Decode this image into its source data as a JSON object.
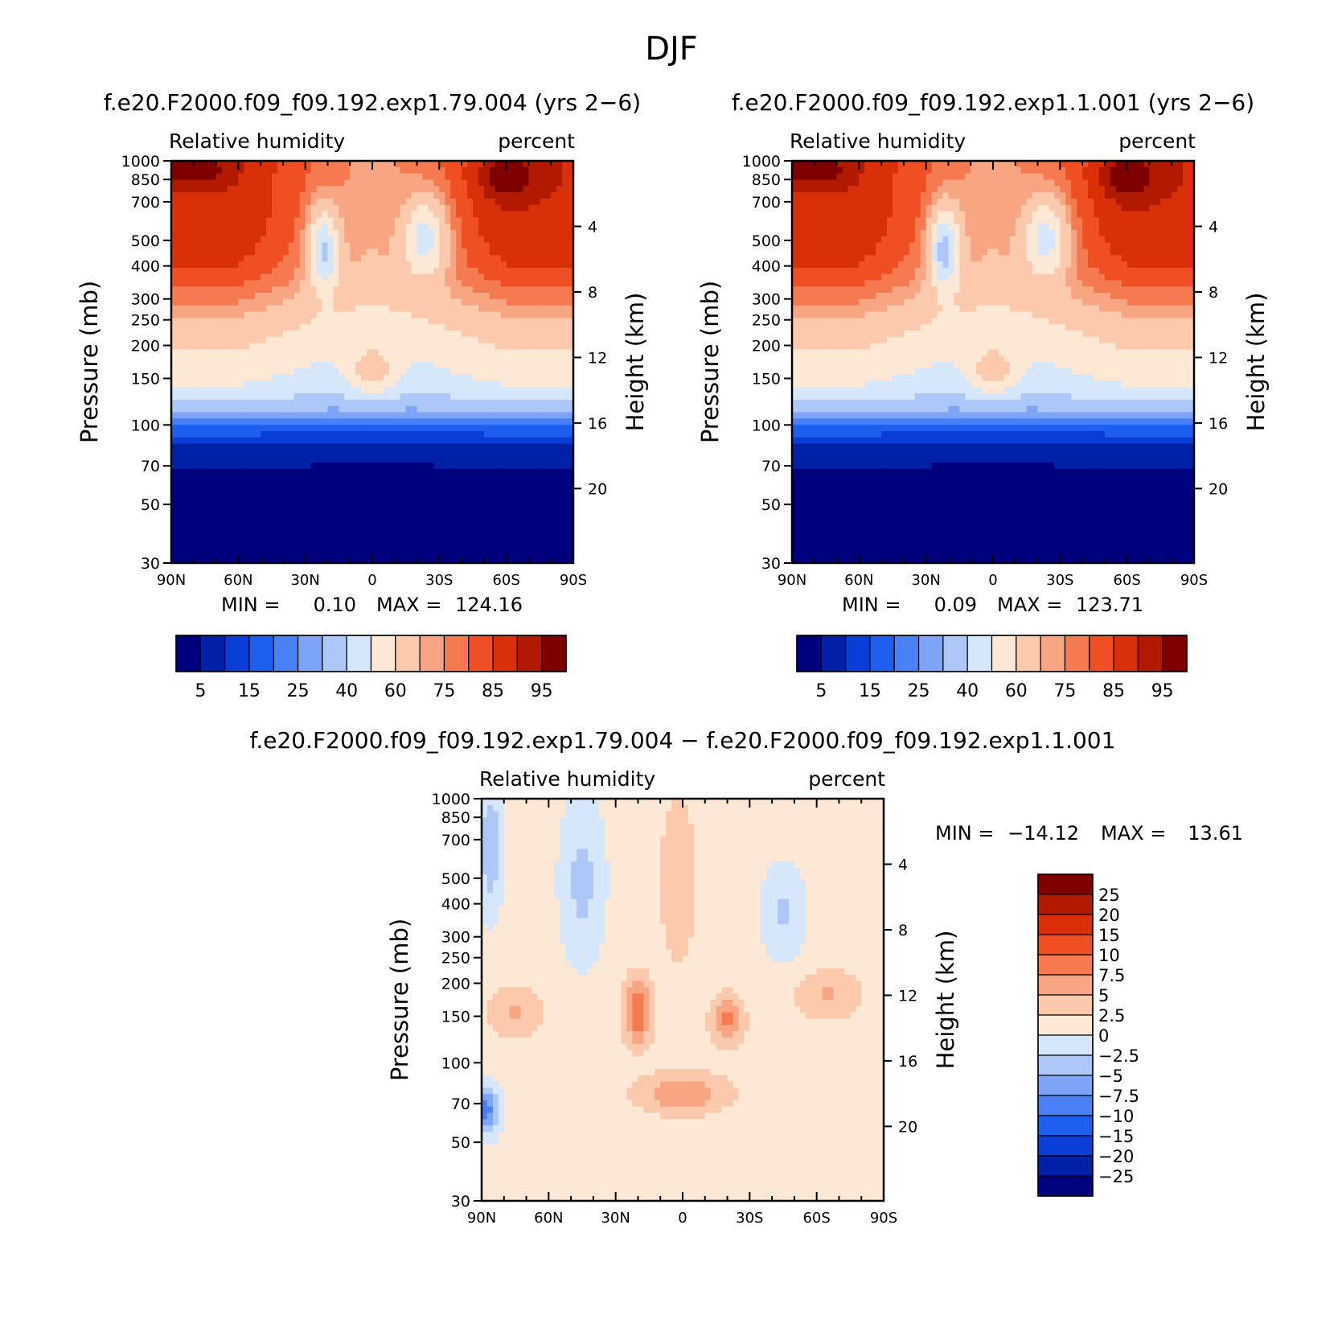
{
  "chart_data": {
    "type": "heatmap",
    "title": "DJF",
    "panels": [
      {
        "id": "p1",
        "title": "f.e20.F2000.f09_f09.192.exp1.79.004 (yrs 2−6)",
        "variable": "Relative humidity",
        "units": "percent",
        "ylabel": "Pressure (mb)",
        "ylabel_right": "Height (km)",
        "xlabel": "",
        "x_ticks": [
          "90N",
          "60N",
          "30N",
          "0",
          "30S",
          "60S",
          "90S"
        ],
        "y_ticks": [
          "30",
          "50",
          "70",
          "100",
          "150",
          "200",
          "250",
          "300",
          "400",
          "500",
          "700",
          "850",
          "1000"
        ],
        "height_ticks": [
          "20",
          "16",
          "12",
          "8",
          "4"
        ],
        "min_label": "MIN =",
        "min_value": "0.10",
        "max_label": "MAX =",
        "max_value": "124.16",
        "levels": [
          5,
          10,
          15,
          20,
          25,
          30,
          40,
          50,
          60,
          70,
          75,
          80,
          85,
          90,
          95
        ],
        "colorbar_labels": [
          "5",
          "15",
          "25",
          "40",
          "60",
          "75",
          "85",
          "95"
        ],
        "ylim": [
          1000,
          30
        ],
        "xlim": [
          90,
          -90
        ]
      },
      {
        "id": "p2",
        "title": "f.e20.F2000.f09_f09.192.exp1.1.001 (yrs 2−6)",
        "variable": "Relative humidity",
        "units": "percent",
        "ylabel": "Pressure (mb)",
        "ylabel_right": "Height (km)",
        "xlabel": "",
        "x_ticks": [
          "90N",
          "60N",
          "30N",
          "0",
          "30S",
          "60S",
          "90S"
        ],
        "y_ticks": [
          "30",
          "50",
          "70",
          "100",
          "150",
          "200",
          "250",
          "300",
          "400",
          "500",
          "700",
          "850",
          "1000"
        ],
        "height_ticks": [
          "20",
          "16",
          "12",
          "8",
          "4"
        ],
        "min_label": "MIN =",
        "min_value": "0.09",
        "max_label": "MAX =",
        "max_value": "123.71",
        "levels": [
          5,
          10,
          15,
          20,
          25,
          30,
          40,
          50,
          60,
          70,
          75,
          80,
          85,
          90,
          95
        ],
        "colorbar_labels": [
          "5",
          "15",
          "25",
          "40",
          "60",
          "75",
          "85",
          "95"
        ],
        "ylim": [
          1000,
          30
        ],
        "xlim": [
          90,
          -90
        ]
      },
      {
        "id": "p3",
        "title": "f.e20.F2000.f09_f09.192.exp1.79.004 − f.e20.F2000.f09_f09.192.exp1.1.001",
        "variable": "Relative humidity",
        "units": "percent",
        "ylabel": "Pressure (mb)",
        "ylabel_right": "Height (km)",
        "xlabel": "",
        "x_ticks": [
          "90N",
          "60N",
          "30N",
          "0",
          "30S",
          "60S",
          "90S"
        ],
        "y_ticks": [
          "30",
          "50",
          "70",
          "100",
          "150",
          "200",
          "250",
          "300",
          "400",
          "500",
          "700",
          "850",
          "1000"
        ],
        "height_ticks": [
          "20",
          "16",
          "12",
          "8",
          "4"
        ],
        "min_label": "MIN =",
        "min_value": "−14.12",
        "max_label": "MAX =",
        "max_value": "13.61",
        "levels": [
          -25,
          -20,
          -15,
          -10,
          -7.5,
          -5,
          -2.5,
          0,
          2.5,
          5,
          7.5,
          10,
          15,
          20,
          25
        ],
        "colorbar_labels": [
          "25",
          "20",
          "15",
          "10",
          "7.5",
          "5",
          "2.5",
          "0",
          "−2.5",
          "−5",
          "−7.5",
          "−10",
          "−15",
          "−20",
          "−25"
        ],
        "ylim": [
          1000,
          30
        ],
        "xlim": [
          90,
          -90
        ]
      }
    ]
  },
  "colors": {
    "abs_scale": [
      "#00007f",
      "#0020a8",
      "#0b3ed6",
      "#1f5fef",
      "#4a80f5",
      "#7da4f6",
      "#adc8f8",
      "#d6e6fb",
      "#fde7d5",
      "#fbc9ac",
      "#f8a583",
      "#f57a50",
      "#ef4f22",
      "#d93009",
      "#b21a00",
      "#7e0000"
    ],
    "diff_scale": [
      "#7e0000",
      "#b21a00",
      "#d93009",
      "#ef4f22",
      "#f57a50",
      "#f8a583",
      "#fbc9ac",
      "#fde7d5",
      "#d6e6fb",
      "#adc8f8",
      "#7da4f6",
      "#4a80f5",
      "#1f5fef",
      "#0b3ed6",
      "#0020a8",
      "#00007f"
    ]
  }
}
